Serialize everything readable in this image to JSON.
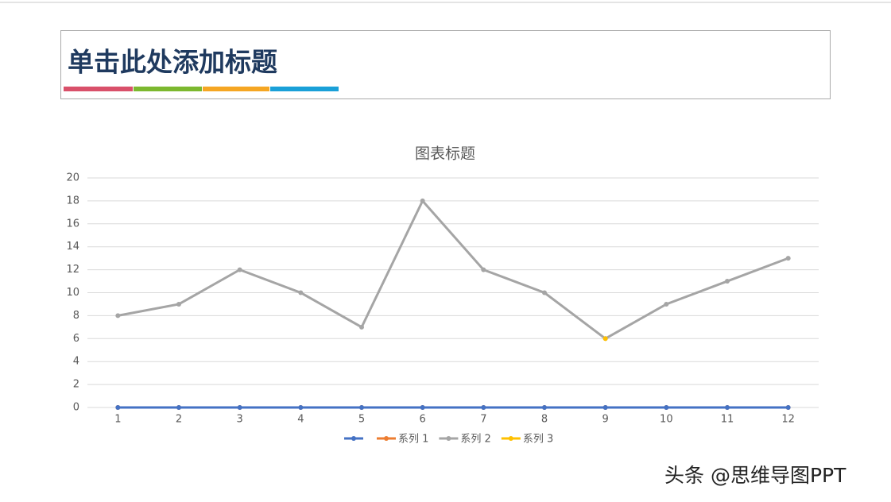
{
  "slide": {
    "title": "单击此处添加标题",
    "watermark": "头条 @思维导图PPT"
  },
  "chart_data": {
    "type": "line",
    "title": "图表标题",
    "categories": [
      "1",
      "2",
      "3",
      "4",
      "5",
      "6",
      "7",
      "8",
      "9",
      "10",
      "11",
      "12"
    ],
    "series": [
      {
        "name": "系列 1",
        "color": "#ed7d31",
        "values": [
          0,
          0,
          0,
          0,
          0,
          0,
          0,
          0,
          0,
          0,
          0,
          0
        ]
      },
      {
        "color": "#4472c4",
        "values": [
          0,
          0,
          0,
          0,
          0,
          0,
          0,
          0,
          0,
          0,
          0,
          0
        ]
      },
      {
        "name": "系列 2",
        "color": "#a5a5a5",
        "values": [
          8,
          9,
          12,
          10,
          7,
          18,
          12,
          10,
          6,
          9,
          11,
          13
        ]
      },
      {
        "name": "系列 3",
        "color": "#ffc000",
        "values": [
          null,
          null,
          null,
          null,
          null,
          null,
          null,
          null,
          6,
          null,
          null,
          null
        ]
      }
    ],
    "legend_order": [
      1,
      0,
      2,
      3
    ],
    "ylim": [
      0,
      20
    ],
    "yticks": [
      0,
      2,
      4,
      6,
      8,
      10,
      12,
      14,
      16,
      18,
      20
    ],
    "grid": true,
    "legend": "bottom"
  }
}
